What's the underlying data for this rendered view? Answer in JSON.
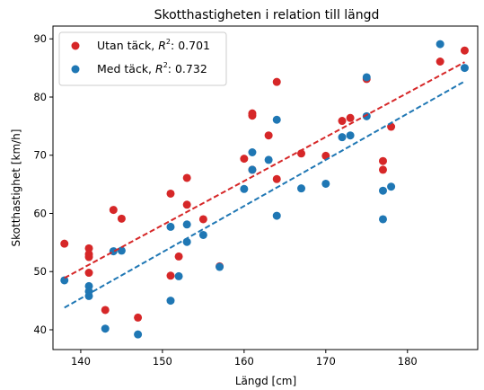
{
  "chart_data": {
    "type": "scatter",
    "title": "Skotthastigheten i relation till längd",
    "xlabel": "Längd [cm]",
    "ylabel": "Skotthastighet [km/h]",
    "xlim": [
      136.6,
      188.6
    ],
    "ylim": [
      36.6,
      92.2
    ],
    "xticks": [
      140,
      150,
      160,
      170,
      180
    ],
    "yticks": [
      40,
      50,
      60,
      70,
      80,
      90
    ],
    "grid": false,
    "legend_position": "top-left",
    "series": [
      {
        "name": "Utan täck",
        "legend_prefix": "Utan täck, ",
        "r2_label": ": 0.701",
        "color": "#d62728",
        "points": [
          [
            138,
            54.8
          ],
          [
            141,
            54.0
          ],
          [
            141,
            53.0
          ],
          [
            141,
            52.5
          ],
          [
            141,
            49.8
          ],
          [
            143,
            43.4
          ],
          [
            144,
            60.6
          ],
          [
            145,
            59.1
          ],
          [
            147,
            42.1
          ],
          [
            151,
            63.4
          ],
          [
            151,
            49.3
          ],
          [
            152,
            52.6
          ],
          [
            153,
            66.1
          ],
          [
            153,
            61.5
          ],
          [
            155,
            59.0
          ],
          [
            157,
            50.9
          ],
          [
            160,
            69.4
          ],
          [
            161,
            77.2
          ],
          [
            161,
            76.8
          ],
          [
            161,
            67.5
          ],
          [
            163,
            73.4
          ],
          [
            164,
            82.6
          ],
          [
            164,
            65.9
          ],
          [
            167,
            70.3
          ],
          [
            170,
            69.9
          ],
          [
            172,
            75.9
          ],
          [
            173,
            76.4
          ],
          [
            175,
            83.1
          ],
          [
            177,
            69.0
          ],
          [
            177,
            67.5
          ],
          [
            178,
            74.9
          ],
          [
            184,
            86.1
          ],
          [
            187,
            88.0
          ]
        ],
        "fit": {
          "x": [
            138,
            187
          ],
          "y": [
            48.9,
            86.0
          ]
        }
      },
      {
        "name": "Med täck",
        "legend_prefix": "Med täck, ",
        "r2_label": ": 0.732",
        "color": "#1f77b4",
        "points": [
          [
            138,
            48.5
          ],
          [
            141,
            47.5
          ],
          [
            141,
            46.6
          ],
          [
            141,
            45.8
          ],
          [
            143,
            40.2
          ],
          [
            144,
            53.5
          ],
          [
            145,
            53.6
          ],
          [
            147,
            39.2
          ],
          [
            151,
            57.7
          ],
          [
            151,
            45.0
          ],
          [
            152,
            49.2
          ],
          [
            153,
            58.1
          ],
          [
            153,
            55.1
          ],
          [
            155,
            56.3
          ],
          [
            157,
            50.8
          ],
          [
            160,
            64.2
          ],
          [
            161,
            70.5
          ],
          [
            161,
            67.5
          ],
          [
            163,
            69.2
          ],
          [
            164,
            76.1
          ],
          [
            164,
            59.6
          ],
          [
            167,
            64.3
          ],
          [
            170,
            65.1
          ],
          [
            172,
            73.1
          ],
          [
            173,
            73.4
          ],
          [
            175,
            83.4
          ],
          [
            175,
            76.7
          ],
          [
            177,
            63.9
          ],
          [
            177,
            59.0
          ],
          [
            178,
            64.6
          ],
          [
            184,
            89.1
          ],
          [
            187,
            85.0
          ]
        ],
        "fit": {
          "x": [
            138,
            187
          ],
          "y": [
            43.8,
            82.7
          ]
        }
      }
    ]
  }
}
